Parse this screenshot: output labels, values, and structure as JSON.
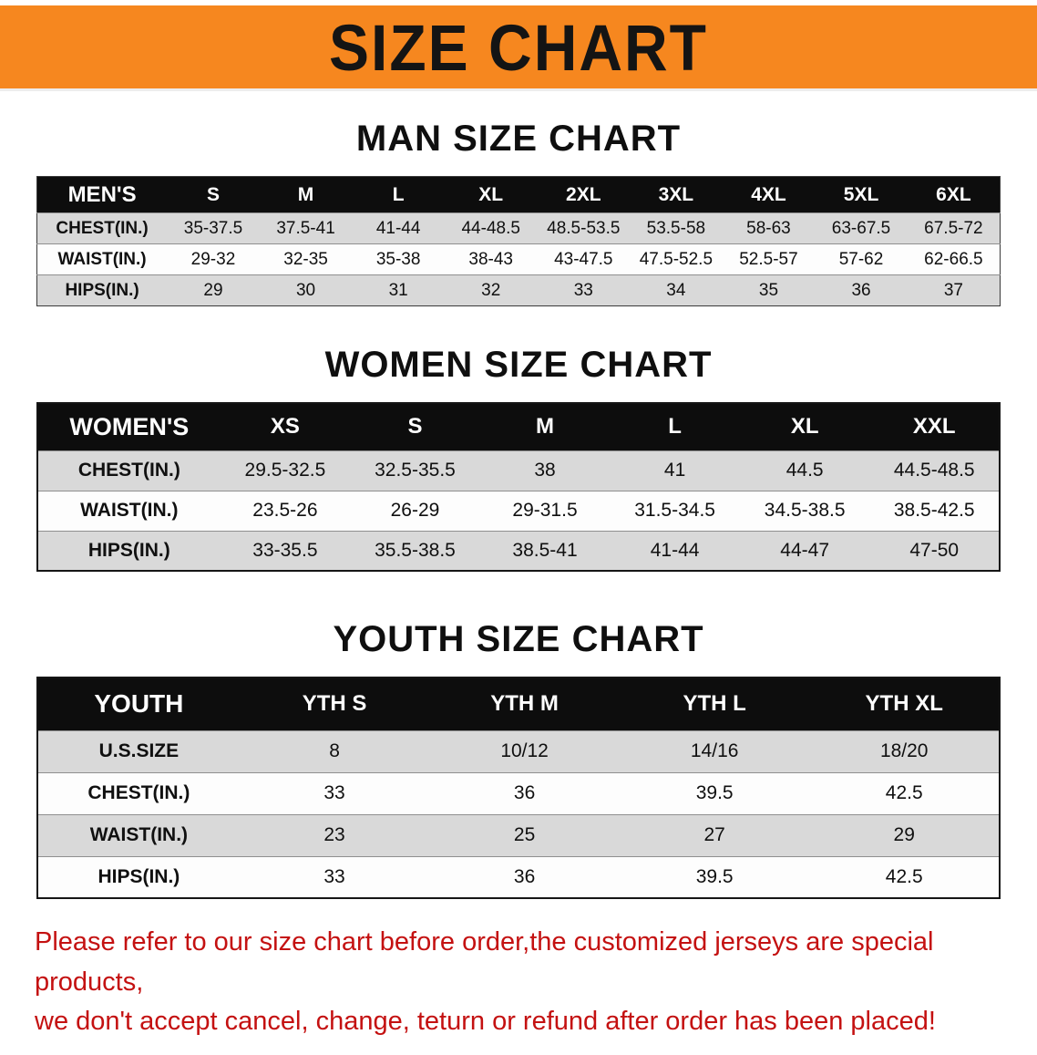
{
  "colors": {
    "banner-orange": "#f6871f",
    "header-black": "#0d0d0d",
    "row-gray": "#d9d9d9",
    "disclaimer-red": "#c41111"
  },
  "banner": {
    "title": "SIZE CHART"
  },
  "sections": [
    {
      "id": "men",
      "heading": "MAN SIZE CHART",
      "table": {
        "header": [
          "MEN'S",
          "S",
          "M",
          "L",
          "XL",
          "2XL",
          "3XL",
          "4XL",
          "5XL",
          "6XL"
        ],
        "rows": [
          [
            "CHEST(IN.)",
            "35-37.5",
            "37.5-41",
            "41-44",
            "44-48.5",
            "48.5-53.5",
            "53.5-58",
            "58-63",
            "63-67.5",
            "67.5-72"
          ],
          [
            "WAIST(IN.)",
            "29-32",
            "32-35",
            "35-38",
            "38-43",
            "43-47.5",
            "47.5-52.5",
            "52.5-57",
            "57-62",
            "62-66.5"
          ],
          [
            "HIPS(IN.)",
            "29",
            "30",
            "31",
            "32",
            "33",
            "34",
            "35",
            "36",
            "37"
          ]
        ]
      }
    },
    {
      "id": "women",
      "heading": "WOMEN SIZE CHART",
      "table": {
        "header": [
          "WOMEN'S",
          "XS",
          "S",
          "M",
          "L",
          "XL",
          "XXL"
        ],
        "rows": [
          [
            "CHEST(IN.)",
            "29.5-32.5",
            "32.5-35.5",
            "38",
            "41",
            "44.5",
            "44.5-48.5"
          ],
          [
            "WAIST(IN.)",
            "23.5-26",
            "26-29",
            "29-31.5",
            "31.5-34.5",
            "34.5-38.5",
            "38.5-42.5"
          ],
          [
            "HIPS(IN.)",
            "33-35.5",
            "35.5-38.5",
            "38.5-41",
            "41-44",
            "44-47",
            "47-50"
          ]
        ]
      }
    },
    {
      "id": "youth",
      "heading": "YOUTH SIZE CHART",
      "table": {
        "header": [
          "YOUTH",
          "YTH S",
          "YTH M",
          "YTH L",
          "YTH XL"
        ],
        "rows": [
          [
            "U.S.SIZE",
            "8",
            "10/12",
            "14/16",
            "18/20"
          ],
          [
            "CHEST(IN.)",
            "33",
            "36",
            "39.5",
            "42.5"
          ],
          [
            "WAIST(IN.)",
            "23",
            "25",
            "27",
            "29"
          ],
          [
            "HIPS(IN.)",
            "33",
            "36",
            "39.5",
            "42.5"
          ]
        ]
      }
    }
  ],
  "disclaimer": {
    "line1": "Please refer to our size chart before order,the customized jerseys are special products,",
    "line2": "we don't accept cancel, change, teturn or refund after order has been placed!"
  }
}
